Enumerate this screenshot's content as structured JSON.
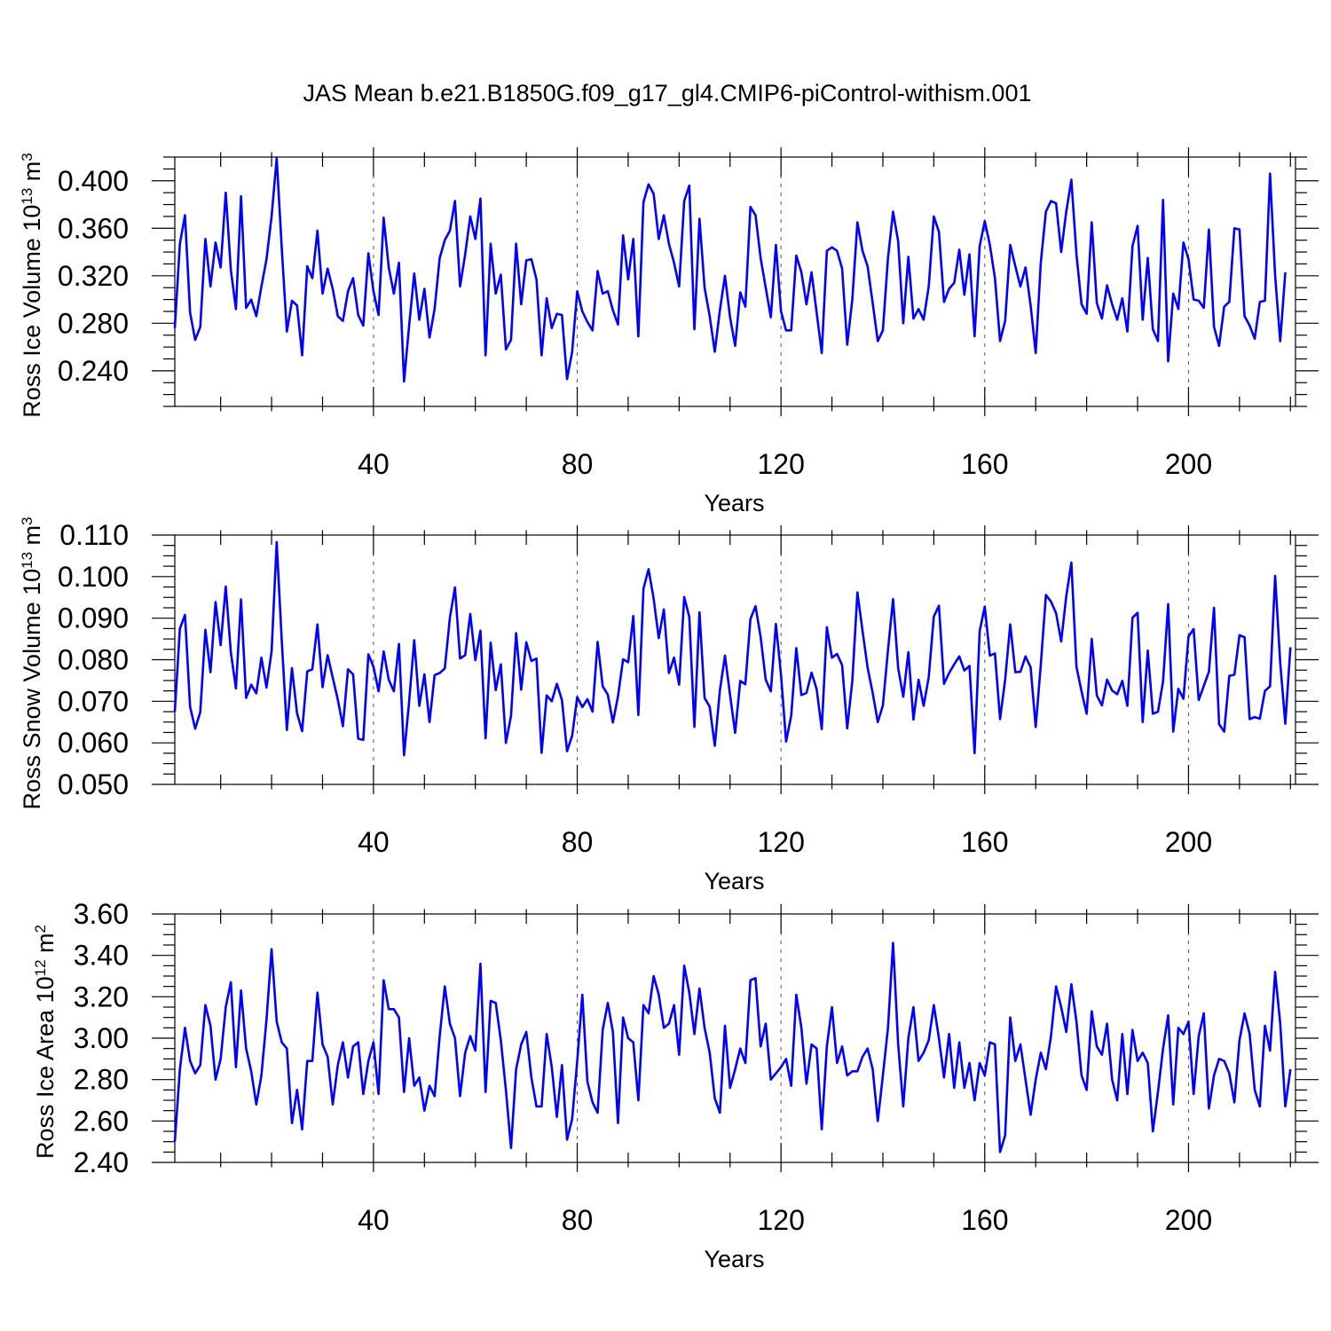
{
  "title": "JAS Mean b.e21.B1850G.f09_g17_gl4.CMIP6-piControl-withism.001",
  "colors": {
    "series": "#0000ff"
  },
  "chart_data": [
    {
      "type": "line",
      "ylabel": {
        "text": "Ross Ice Volume 10",
        "sup": "13",
        "unit": " m",
        "unit_sup": "3"
      },
      "xlabel": "Years",
      "xlim": [
        1,
        221
      ],
      "ylim": [
        0.21,
        0.42
      ],
      "xticks": [
        40,
        80,
        120,
        160,
        200
      ],
      "xtick_labels": [
        "40",
        "80",
        "120",
        "160",
        "200"
      ],
      "yticks": [
        0.24,
        0.28,
        0.32,
        0.36,
        0.4
      ],
      "ytick_labels": [
        "0.240",
        "0.280",
        "0.320",
        "0.360",
        "0.400"
      ],
      "grid": "vertical dashed",
      "series": [
        {
          "x_start": 1,
          "values": [
            0.276,
            0.347,
            0.371,
            0.289,
            0.266,
            0.277,
            0.351,
            0.311,
            0.348,
            0.327,
            0.39,
            0.325,
            0.292,
            0.387,
            0.293,
            0.3,
            0.286,
            0.311,
            0.334,
            0.37,
            0.419,
            0.343,
            0.273,
            0.299,
            0.295,
            0.253,
            0.328,
            0.318,
            0.358,
            0.305,
            0.326,
            0.309,
            0.286,
            0.282,
            0.307,
            0.318,
            0.287,
            0.278,
            0.339,
            0.307,
            0.287,
            0.369,
            0.327,
            0.305,
            0.331,
            0.231,
            0.278,
            0.322,
            0.283,
            0.309,
            0.268,
            0.292,
            0.335,
            0.35,
            0.358,
            0.383,
            0.311,
            0.338,
            0.37,
            0.351,
            0.385,
            0.253,
            0.347,
            0.305,
            0.321,
            0.258,
            0.266,
            0.347,
            0.296,
            0.333,
            0.334,
            0.317,
            0.253,
            0.301,
            0.276,
            0.288,
            0.287,
            0.233,
            0.256,
            0.307,
            0.29,
            0.281,
            0.274,
            0.324,
            0.305,
            0.307,
            0.291,
            0.279,
            0.354,
            0.317,
            0.351,
            0.269,
            0.382,
            0.397,
            0.389,
            0.351,
            0.371,
            0.347,
            0.331,
            0.311,
            0.383,
            0.396,
            0.275,
            0.368,
            0.31,
            0.286,
            0.256,
            0.291,
            0.32,
            0.285,
            0.261,
            0.306,
            0.294,
            0.378,
            0.371,
            0.335,
            0.31,
            0.285,
            0.346,
            0.29,
            0.274,
            0.274,
            0.337,
            0.323,
            0.296,
            0.323,
            0.289,
            0.255,
            0.341,
            0.344,
            0.341,
            0.326,
            0.262,
            0.3,
            0.365,
            0.341,
            0.328,
            0.297,
            0.265,
            0.274,
            0.335,
            0.374,
            0.349,
            0.28,
            0.336,
            0.284,
            0.292,
            0.283,
            0.311,
            0.37,
            0.357,
            0.298,
            0.309,
            0.314,
            0.342,
            0.304,
            0.338,
            0.269,
            0.345,
            0.366,
            0.346,
            0.318,
            0.265,
            0.282,
            0.346,
            0.328,
            0.311,
            0.327,
            0.295,
            0.255,
            0.331,
            0.374,
            0.383,
            0.381,
            0.34,
            0.374,
            0.401,
            0.338,
            0.296,
            0.288,
            0.365,
            0.297,
            0.284,
            0.312,
            0.296,
            0.283,
            0.301,
            0.273,
            0.345,
            0.362,
            0.283,
            0.335,
            0.275,
            0.265,
            0.384,
            0.248,
            0.305,
            0.292,
            0.348,
            0.334,
            0.3,
            0.299,
            0.293,
            0.359,
            0.277,
            0.261,
            0.294,
            0.298,
            0.36,
            0.359,
            0.286,
            0.278,
            0.267,
            0.298,
            0.299,
            0.406,
            0.32,
            0.265,
            0.323
          ]
        }
      ]
    },
    {
      "type": "line",
      "ylabel": {
        "text": "Ross Snow Volume 10",
        "sup": "13",
        "unit": " m",
        "unit_sup": "3"
      },
      "xlabel": "Years",
      "xlim": [
        1,
        221
      ],
      "ylim": [
        0.05,
        0.11
      ],
      "xticks": [
        40,
        80,
        120,
        160,
        200
      ],
      "xtick_labels": [
        "40",
        "80",
        "120",
        "160",
        "200"
      ],
      "yticks": [
        0.05,
        0.06,
        0.07,
        0.08,
        0.09,
        0.1,
        0.11
      ],
      "ytick_labels": [
        "0.050",
        "0.060",
        "0.070",
        "0.080",
        "0.090",
        "0.100",
        "0.110"
      ],
      "grid": "vertical dashed",
      "series": [
        {
          "x_start": 1,
          "values": [
            0.0675,
            0.0875,
            0.0908,
            0.0687,
            0.0634,
            0.0674,
            0.0872,
            0.077,
            0.0939,
            0.0835,
            0.0976,
            0.0818,
            0.0731,
            0.0945,
            0.0708,
            0.074,
            0.0719,
            0.0805,
            0.0733,
            0.082,
            0.1083,
            0.0845,
            0.0631,
            0.078,
            0.0671,
            0.0628,
            0.0772,
            0.0777,
            0.0885,
            0.0734,
            0.0811,
            0.0757,
            0.0704,
            0.064,
            0.0777,
            0.0765,
            0.061,
            0.0607,
            0.0813,
            0.0783,
            0.0724,
            0.082,
            0.0752,
            0.0724,
            0.0838,
            0.057,
            0.0699,
            0.0847,
            0.0689,
            0.0765,
            0.065,
            0.0763,
            0.0768,
            0.0779,
            0.0901,
            0.0974,
            0.0803,
            0.0811,
            0.091,
            0.0799,
            0.087,
            0.0611,
            0.0841,
            0.0727,
            0.0789,
            0.06,
            0.0665,
            0.0864,
            0.0728,
            0.0842,
            0.0797,
            0.0803,
            0.0576,
            0.0714,
            0.07,
            0.0742,
            0.0703,
            0.058,
            0.0617,
            0.071,
            0.0686,
            0.0705,
            0.0675,
            0.0843,
            0.0736,
            0.0716,
            0.0649,
            0.0712,
            0.0801,
            0.0794,
            0.0905,
            0.0667,
            0.0971,
            0.1018,
            0.0947,
            0.0852,
            0.0921,
            0.0768,
            0.0805,
            0.074,
            0.0951,
            0.0903,
            0.0638,
            0.0914,
            0.0708,
            0.0687,
            0.0593,
            0.0726,
            0.081,
            0.0715,
            0.0624,
            0.0749,
            0.0741,
            0.0898,
            0.0929,
            0.0855,
            0.0752,
            0.0724,
            0.0886,
            0.0764,
            0.0603,
            0.0665,
            0.0828,
            0.0715,
            0.072,
            0.0769,
            0.0729,
            0.0633,
            0.0878,
            0.0805,
            0.0814,
            0.0787,
            0.0635,
            0.0749,
            0.0962,
            0.087,
            0.0781,
            0.072,
            0.065,
            0.069,
            0.0823,
            0.0946,
            0.078,
            0.0711,
            0.0818,
            0.0656,
            0.0752,
            0.0689,
            0.0758,
            0.0904,
            0.093,
            0.0742,
            0.0768,
            0.0789,
            0.0808,
            0.0774,
            0.0785,
            0.0575,
            0.0869,
            0.0928,
            0.081,
            0.0815,
            0.0657,
            0.0752,
            0.0885,
            0.077,
            0.0771,
            0.0808,
            0.0782,
            0.0638,
            0.0788,
            0.0956,
            0.094,
            0.0912,
            0.0844,
            0.0953,
            0.1034,
            0.0783,
            0.0724,
            0.067,
            0.085,
            0.0714,
            0.069,
            0.0752,
            0.0726,
            0.0717,
            0.0749,
            0.0689,
            0.0901,
            0.0913,
            0.065,
            0.0822,
            0.067,
            0.0675,
            0.0748,
            0.0934,
            0.0627,
            0.073,
            0.0706,
            0.0856,
            0.0874,
            0.0703,
            0.0737,
            0.0771,
            0.0925,
            0.0645,
            0.0627,
            0.0761,
            0.0764,
            0.0859,
            0.0854,
            0.0657,
            0.0662,
            0.0658,
            0.0725,
            0.0736,
            0.1002,
            0.0792,
            0.0646,
            0.083
          ]
        }
      ]
    },
    {
      "type": "line",
      "ylabel": {
        "text": "Ross Ice Area 10",
        "sup": "12",
        "unit": " m",
        "unit_sup": "2"
      },
      "xlabel": "Years",
      "xlim": [
        1,
        221
      ],
      "ylim": [
        2.4,
        3.6
      ],
      "xticks": [
        40,
        80,
        120,
        160,
        200
      ],
      "xtick_labels": [
        "40",
        "80",
        "120",
        "160",
        "200"
      ],
      "yticks": [
        2.4,
        2.6,
        2.8,
        3.0,
        3.2,
        3.4,
        3.6
      ],
      "ytick_labels": [
        "2.40",
        "2.60",
        "2.80",
        "3.00",
        "3.20",
        "3.40",
        "3.60"
      ],
      "grid": "vertical dashed",
      "series": [
        {
          "x_start": 1,
          "values": [
            2.5,
            2.85,
            3.05,
            2.89,
            2.83,
            2.87,
            3.16,
            3.06,
            2.8,
            2.9,
            3.15,
            3.27,
            2.86,
            3.23,
            2.95,
            2.84,
            2.68,
            2.82,
            3.09,
            3.43,
            3.08,
            2.98,
            2.95,
            2.59,
            2.75,
            2.56,
            2.89,
            2.89,
            3.22,
            2.97,
            2.91,
            2.68,
            2.87,
            2.98,
            2.81,
            2.96,
            2.98,
            2.73,
            2.89,
            2.98,
            2.73,
            3.28,
            3.14,
            3.14,
            3.1,
            2.74,
            3.0,
            2.77,
            2.81,
            2.65,
            2.77,
            2.72,
            3.01,
            3.25,
            3.07,
            3.0,
            2.72,
            2.93,
            3.01,
            2.94,
            3.36,
            2.74,
            3.18,
            3.17,
            2.99,
            2.75,
            2.47,
            2.85,
            2.97,
            3.03,
            2.81,
            2.67,
            2.67,
            3.02,
            2.86,
            2.62,
            2.87,
            2.51,
            2.61,
            2.89,
            3.21,
            2.79,
            2.69,
            2.64,
            3.04,
            3.17,
            3.03,
            2.59,
            3.1,
            3.0,
            2.98,
            2.7,
            3.16,
            3.12,
            3.3,
            3.21,
            3.05,
            3.07,
            3.16,
            2.92,
            3.35,
            3.22,
            3.02,
            3.24,
            3.05,
            2.93,
            2.71,
            2.64,
            3.06,
            2.76,
            2.85,
            2.95,
            2.88,
            3.28,
            3.29,
            2.96,
            3.07,
            2.8,
            2.83,
            2.86,
            2.9,
            2.77,
            3.21,
            3.05,
            2.78,
            2.97,
            2.95,
            2.56,
            2.96,
            3.15,
            2.88,
            2.96,
            2.82,
            2.84,
            2.84,
            2.91,
            2.95,
            2.85,
            2.6,
            2.82,
            3.05,
            3.46,
            2.97,
            2.67,
            3.0,
            3.15,
            2.89,
            2.93,
            2.99,
            3.16,
            3.0,
            2.81,
            3.02,
            2.76,
            2.98,
            2.76,
            2.88,
            2.7,
            2.88,
            2.82,
            2.98,
            2.97,
            2.45,
            2.53,
            3.1,
            2.89,
            2.97,
            2.8,
            2.63,
            2.8,
            2.93,
            2.85,
            3.01,
            3.25,
            3.15,
            3.03,
            3.26,
            3.08,
            2.82,
            2.75,
            3.13,
            2.96,
            2.92,
            3.07,
            2.8,
            2.7,
            3.02,
            2.73,
            3.04,
            2.89,
            2.93,
            2.88,
            2.55,
            2.74,
            2.95,
            3.11,
            2.68,
            3.05,
            3.02,
            3.08,
            2.73,
            3.01,
            3.12,
            2.66,
            2.82,
            2.9,
            2.89,
            2.83,
            2.69,
            2.99,
            3.12,
            3.02,
            2.75,
            2.67,
            3.06,
            2.94,
            3.32,
            3.07,
            2.67,
            2.85
          ]
        }
      ]
    }
  ]
}
